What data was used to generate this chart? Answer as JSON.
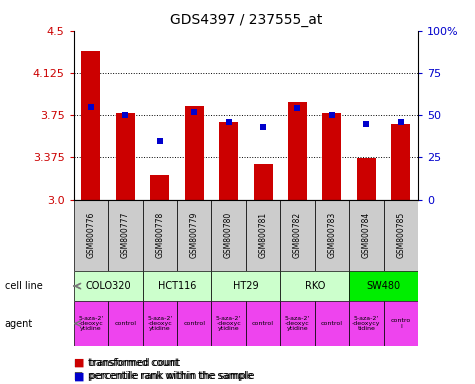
{
  "title": "GDS4397 / 237555_at",
  "samples": [
    "GSM800776",
    "GSM800777",
    "GSM800778",
    "GSM800779",
    "GSM800780",
    "GSM800781",
    "GSM800782",
    "GSM800783",
    "GSM800784",
    "GSM800785"
  ],
  "transformed_count": [
    4.32,
    3.77,
    3.22,
    3.83,
    3.69,
    3.32,
    3.87,
    3.77,
    3.37,
    3.67
  ],
  "percentile_rank": [
    55,
    50,
    35,
    52,
    46,
    43,
    54,
    50,
    45,
    46
  ],
  "ylim": [
    3.0,
    4.5
  ],
  "yticks_left": [
    3.0,
    3.375,
    3.75,
    4.125,
    4.5
  ],
  "yticks_right": [
    0,
    25,
    50,
    75,
    100
  ],
  "bar_color": "#cc0000",
  "dot_color": "#0000cc",
  "bar_width": 0.55,
  "cell_lines": [
    {
      "name": "COLO320",
      "cols": [
        0,
        1
      ],
      "color": "#ccffcc"
    },
    {
      "name": "HCT116",
      "cols": [
        2,
        3
      ],
      "color": "#ccffcc"
    },
    {
      "name": "HT29",
      "cols": [
        4,
        5
      ],
      "color": "#ccffcc"
    },
    {
      "name": "RKO",
      "cols": [
        6,
        7
      ],
      "color": "#ccffcc"
    },
    {
      "name": "SW480",
      "cols": [
        8,
        9
      ],
      "color": "#00ee00"
    }
  ],
  "agents": [
    {
      "name": "5-aza-2'\n-deoxyc\nytidine",
      "col": 0,
      "color": "#ee44ee"
    },
    {
      "name": "control",
      "col": 1,
      "color": "#ee44ee"
    },
    {
      "name": "5-aza-2'\n-deoxyc\nytidine",
      "col": 2,
      "color": "#ee44ee"
    },
    {
      "name": "control",
      "col": 3,
      "color": "#ee44ee"
    },
    {
      "name": "5-aza-2'\n-deoxyc\nytidine",
      "col": 4,
      "color": "#ee44ee"
    },
    {
      "name": "control",
      "col": 5,
      "color": "#ee44ee"
    },
    {
      "name": "5-aza-2'\n-deoxyc\nytidine",
      "col": 6,
      "color": "#ee44ee"
    },
    {
      "name": "control",
      "col": 7,
      "color": "#ee44ee"
    },
    {
      "name": "5-aza-2'\n-deoxycy\ntidine",
      "col": 8,
      "color": "#ee44ee"
    },
    {
      "name": "contro\nl",
      "col": 9,
      "color": "#ee44ee"
    }
  ],
  "sample_bg_color": "#cccccc",
  "ytick_label_color_left": "#cc0000",
  "ytick_label_color_right": "#0000cc"
}
